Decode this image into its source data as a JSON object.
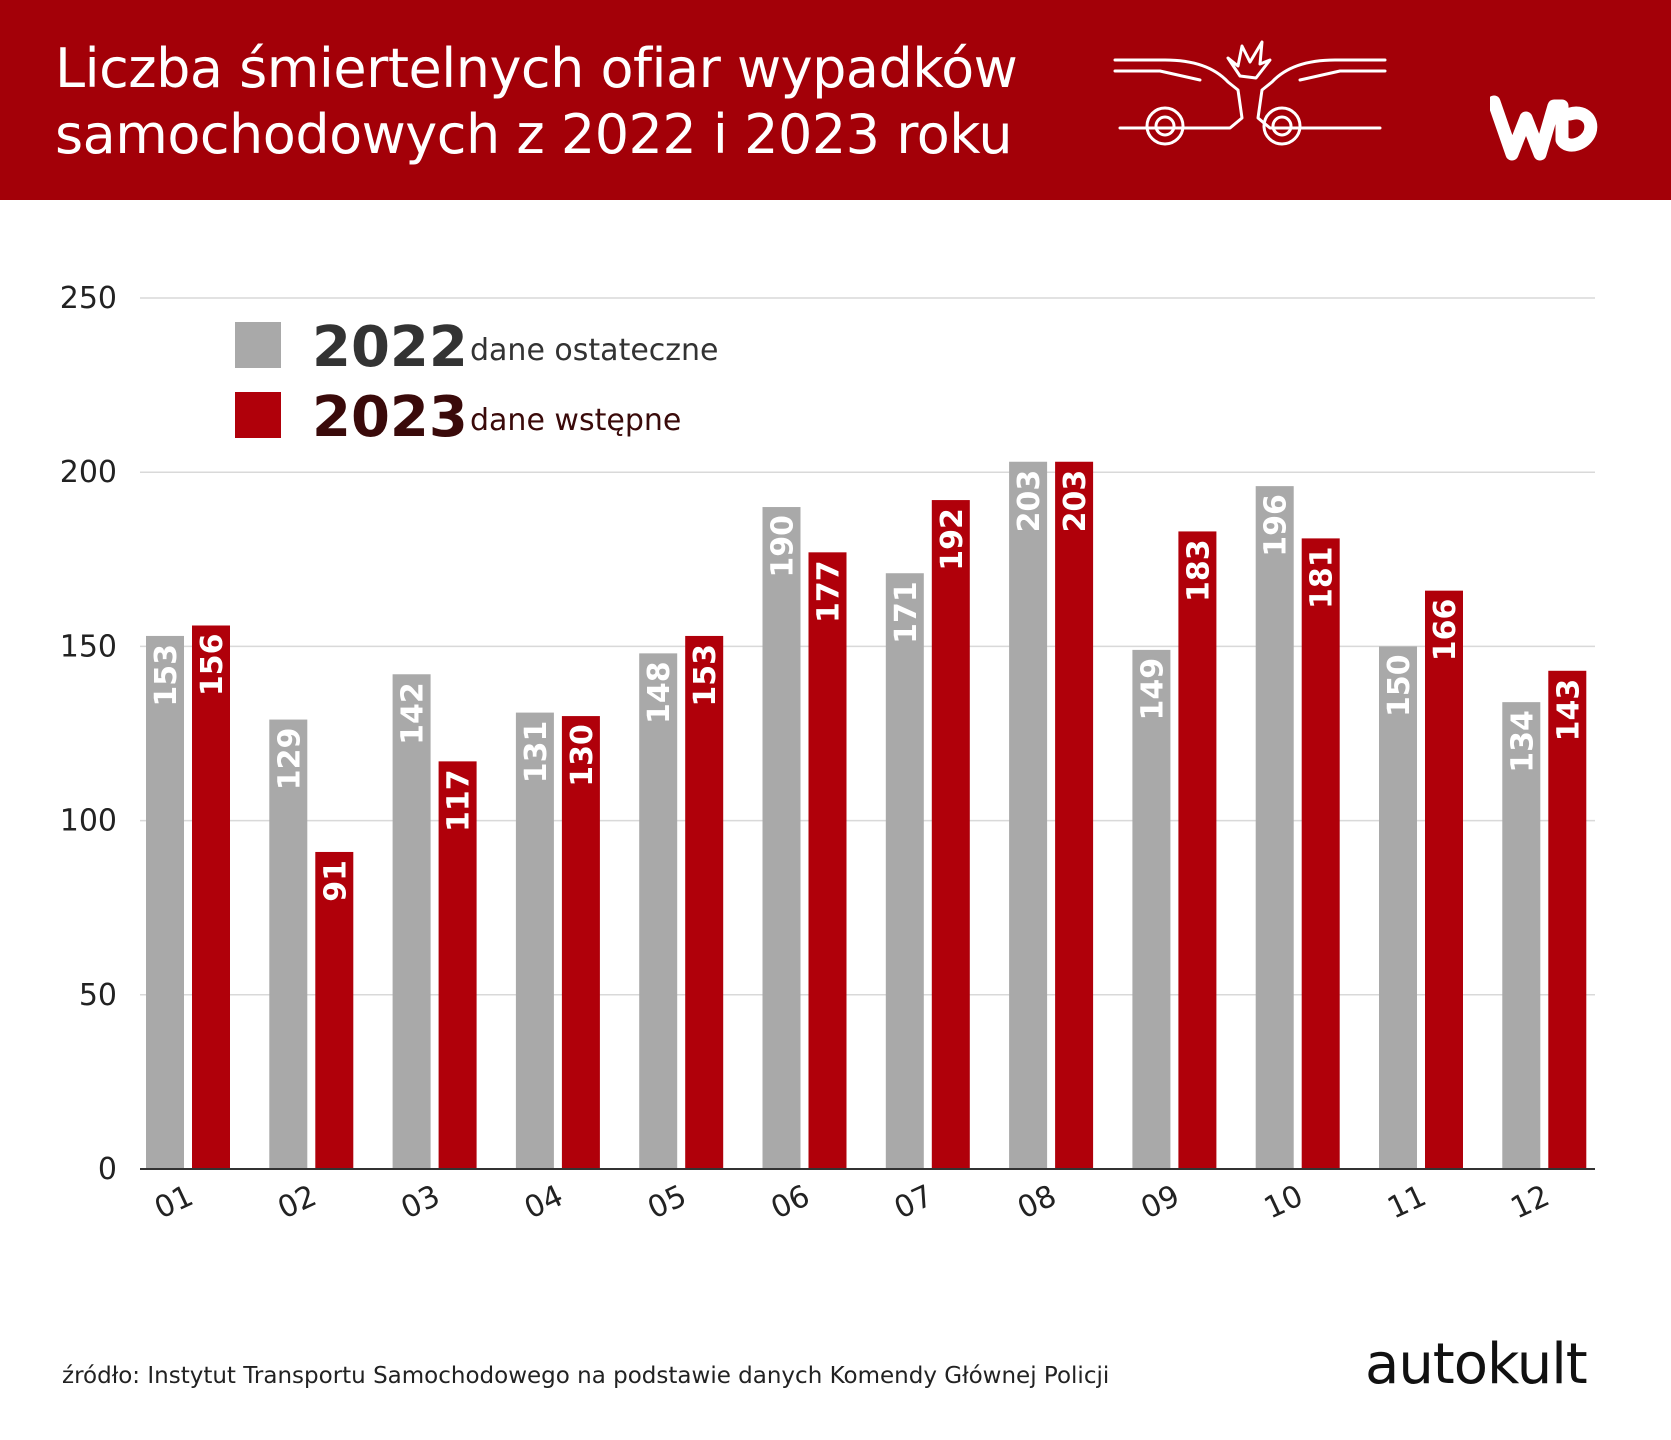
{
  "header": {
    "title_line1": "Liczba śmiertelnych ofiar wypadków",
    "title_line2": "samochodowych z 2022 i 2023 roku",
    "logo_text": "WP"
  },
  "legend": [
    {
      "label": "2022",
      "note": "dane ostateczne",
      "color": "#a9a9a9"
    },
    {
      "label": "2023",
      "note": "dane wstępne",
      "color": "#b0000a"
    }
  ],
  "chart_data": {
    "type": "bar",
    "categories": [
      "01",
      "02",
      "03",
      "04",
      "05",
      "06",
      "07",
      "08",
      "09",
      "10",
      "11",
      "12"
    ],
    "series": [
      {
        "name": "2022",
        "values": [
          153,
          129,
          142,
          131,
          148,
          190,
          171,
          203,
          149,
          196,
          150,
          134
        ]
      },
      {
        "name": "2023",
        "values": [
          156,
          91,
          117,
          130,
          153,
          177,
          192,
          203,
          183,
          181,
          166,
          143
        ]
      }
    ],
    "yticks": [
      0,
      50,
      100,
      150,
      200,
      250
    ],
    "ylim": [
      0,
      250
    ],
    "grid": true,
    "legend_position": "top-left"
  },
  "colors": {
    "header_bg": "#a30008",
    "bar_2022": "#a9a9a9",
    "bar_2023": "#b0000a",
    "grid": "#d9d9d9"
  },
  "footer": {
    "source": "źródło: Instytut Transportu Samochodowego na podstawie danych Komendy Głównej Policji",
    "brand": "autokult"
  }
}
